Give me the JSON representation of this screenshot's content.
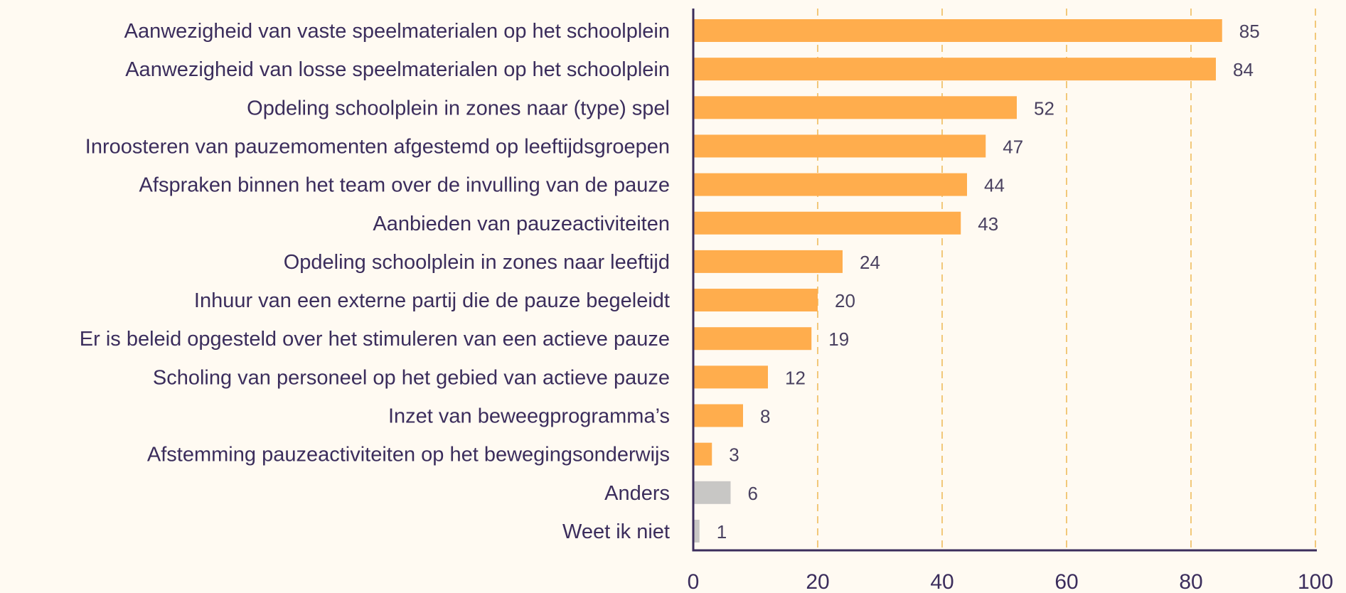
{
  "chart_data": {
    "type": "bar",
    "orientation": "horizontal",
    "categories": [
      "Aanwezigheid van vaste speelmaterialen op het schoolplein",
      "Aanwezigheid van losse speelmaterialen op het schoolplein",
      "Opdeling schoolplein in zones naar (type) spel",
      "Inroosteren van pauzemomenten afgestemd op leeftijdsgroepen",
      "Afspraken binnen het team over de invulling van de pauze",
      "Aanbieden van pauzeactiviteiten",
      "Opdeling schoolplein in zones naar leeftijd",
      "Inhuur van een externe partij die de pauze begeleidt",
      "Er is beleid opgesteld over het stimuleren van een actieve pauze",
      "Scholing van personeel op het gebied van actieve pauze",
      "Inzet van beweegprogramma’s",
      "Afstemming pauzeactiviteiten op het bewegingsonderwijs",
      "Anders",
      "Weet ik niet"
    ],
    "values": [
      85,
      84,
      52,
      47,
      44,
      43,
      24,
      20,
      19,
      12,
      8,
      3,
      6,
      1
    ],
    "bar_colors": [
      "#ffad4d",
      "#ffad4d",
      "#ffad4d",
      "#ffad4d",
      "#ffad4d",
      "#ffad4d",
      "#ffad4d",
      "#ffad4d",
      "#ffad4d",
      "#ffad4d",
      "#ffad4d",
      "#ffad4d",
      "#c8c7c5",
      "#c8c7c5"
    ],
    "xlim": [
      0,
      100
    ],
    "xticks": [
      0,
      20,
      40,
      60,
      80,
      100
    ],
    "grid": "vertical-dashed",
    "grid_color": "#f2c87a",
    "axis_color": "#3b2d5c",
    "title": "",
    "xlabel": "",
    "ylabel": ""
  }
}
